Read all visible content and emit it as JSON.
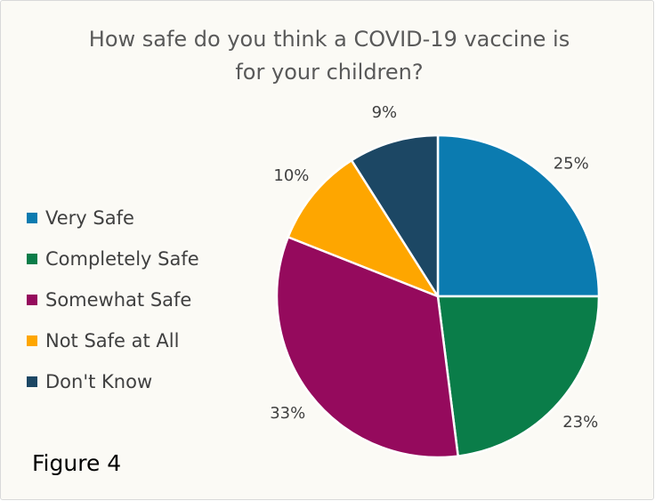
{
  "chart_data": {
    "type": "pie",
    "title_lines": [
      "How safe do you think a COVID-19 vaccine is",
      "for your children?"
    ],
    "slices": [
      {
        "label": "Very Safe",
        "value": 25,
        "display": "25%",
        "color": "#0b7bb0"
      },
      {
        "label": "Completely Safe",
        "value": 23,
        "display": "23%",
        "color": "#0a7d49"
      },
      {
        "label": "Somewhat Safe",
        "value": 33,
        "display": "33%",
        "color": "#950a5d"
      },
      {
        "label": "Not Safe at All",
        "value": 10,
        "display": "10%",
        "color": "#fea600"
      },
      {
        "label": "Don't Know",
        "value": 9,
        "display": "9%",
        "color": "#1c4764"
      }
    ],
    "legend_position": "left"
  },
  "figure_label": "Figure 4"
}
